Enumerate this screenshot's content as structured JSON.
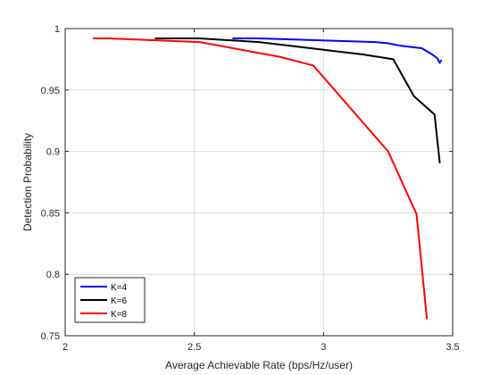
{
  "chart_data": {
    "type": "line",
    "title": "",
    "xlabel": "Average Achievable Rate (bps/Hz/user)",
    "ylabel": "Detection Probability",
    "xlim": [
      2,
      3.5
    ],
    "ylim": [
      0.75,
      1.0
    ],
    "xticks": [
      2,
      2.5,
      3,
      3.5
    ],
    "xtick_labels": [
      "2",
      "2.5",
      "3",
      "3.5"
    ],
    "yticks": [
      0.75,
      0.8,
      0.85,
      0.9,
      0.95,
      1.0
    ],
    "ytick_labels": [
      "0.75",
      "0.8",
      "0.85",
      "0.9",
      "0.95",
      "1"
    ],
    "grid": true,
    "legend_position": "bottom-left",
    "series": [
      {
        "name": "K=4",
        "color": "#0000ff",
        "x": [
          2.65,
          2.75,
          2.9,
          3.05,
          3.2,
          3.25,
          3.3,
          3.38,
          3.42,
          3.44,
          3.45,
          3.455
        ],
        "y": [
          0.992,
          0.992,
          0.991,
          0.99,
          0.989,
          0.988,
          0.986,
          0.984,
          0.979,
          0.976,
          0.972,
          0.974
        ]
      },
      {
        "name": "K=6",
        "color": "#000000",
        "x": [
          2.35,
          2.52,
          2.75,
          2.95,
          3.15,
          3.27,
          3.35,
          3.43,
          3.45
        ],
        "y": [
          0.992,
          0.992,
          0.989,
          0.984,
          0.979,
          0.975,
          0.945,
          0.93,
          0.891
        ]
      },
      {
        "name": "K=8",
        "color": "#ff0000",
        "x": [
          2.11,
          2.17,
          2.52,
          2.83,
          2.96,
          3.25,
          3.36,
          3.4
        ],
        "y": [
          0.992,
          0.992,
          0.989,
          0.977,
          0.97,
          0.9,
          0.849,
          0.764
        ]
      }
    ]
  }
}
